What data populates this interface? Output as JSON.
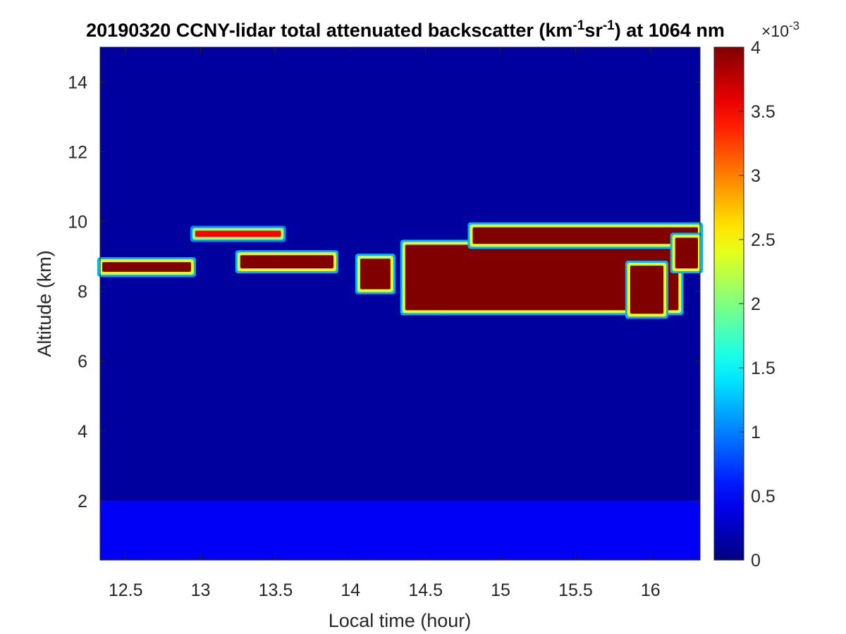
{
  "chart_data": {
    "type": "heatmap",
    "title_parts": {
      "prefix": "20190320 CCNY-lidar total attenuated backscatter (km",
      "sup1": "-1",
      "mid": "sr",
      "sup2": "-1",
      "suffix": ") at 1064 nm"
    },
    "xlabel": "Local time (hour)",
    "ylabel": "Altitude (km)",
    "xlim": [
      12.33,
      16.33
    ],
    "ylim": [
      0.3,
      15.0
    ],
    "xticks": [
      12.5,
      13,
      13.5,
      14,
      14.5,
      15,
      15.5,
      16
    ],
    "xtick_labels": [
      "12.5",
      "13",
      "13.5",
      "14",
      "14.5",
      "15",
      "15.5",
      "16"
    ],
    "yticks": [
      2,
      4,
      6,
      8,
      10,
      12,
      14
    ],
    "ytick_labels": [
      "2",
      "4",
      "6",
      "8",
      "10",
      "12",
      "14"
    ],
    "colorbar": {
      "range": [
        0,
        4
      ],
      "ticks": [
        0,
        0.5,
        1,
        1.5,
        2,
        2.5,
        3,
        3.5,
        4
      ],
      "tick_labels": [
        "0",
        "0.5",
        "1",
        "1.5",
        "2",
        "2.5",
        "3",
        "3.5",
        "4"
      ],
      "exponent_label": "×10",
      "exponent_power": "-3",
      "colormap": "jet"
    },
    "background_level": 0.12,
    "boundary_layer": {
      "top_km": 2.0,
      "level": 0.5
    },
    "cloud_layers": [
      {
        "x_start": 12.33,
        "x_end": 12.95,
        "alt_bottom": 8.5,
        "alt_top": 8.9,
        "peak": 4.0
      },
      {
        "x_start": 12.95,
        "x_end": 13.55,
        "alt_bottom": 9.5,
        "alt_top": 9.8,
        "peak": 3.5
      },
      {
        "x_start": 13.25,
        "x_end": 13.9,
        "alt_bottom": 8.6,
        "alt_top": 9.1,
        "peak": 4.0
      },
      {
        "x_start": 14.05,
        "x_end": 14.28,
        "alt_bottom": 8.0,
        "alt_top": 9.0,
        "peak": 4.0
      },
      {
        "x_start": 14.35,
        "x_end": 16.2,
        "alt_bottom": 7.4,
        "alt_top": 9.4,
        "peak": 4.0
      },
      {
        "x_start": 14.8,
        "x_end": 16.33,
        "alt_bottom": 9.3,
        "alt_top": 9.9,
        "peak": 4.0
      },
      {
        "x_start": 15.85,
        "x_end": 16.1,
        "alt_bottom": 7.3,
        "alt_top": 8.8,
        "peak": 4.0
      },
      {
        "x_start": 16.15,
        "x_end": 16.33,
        "alt_bottom": 8.6,
        "alt_top": 9.6,
        "peak": 4.0
      }
    ]
  }
}
